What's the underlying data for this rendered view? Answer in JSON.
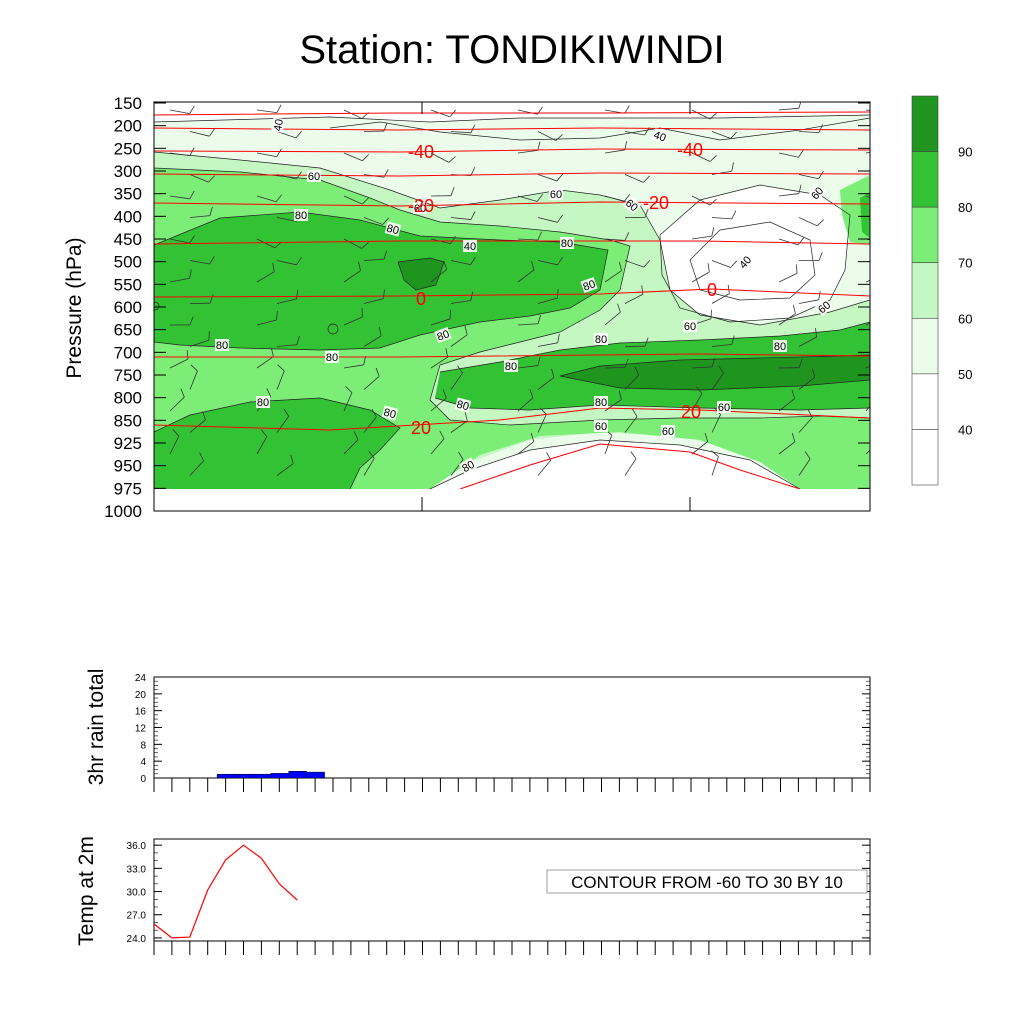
{
  "title": "Station: TONDIKIWINDI",
  "colors": {
    "fill_levels": [
      "#ffffff",
      "#ecfceb",
      "#c5f7c2",
      "#7cee77",
      "#33c233",
      "#1f951f"
    ],
    "contour_line": "#111111",
    "temperature_line": "#ff0000",
    "rain_bar": "#0000ff"
  },
  "chart_data": [
    {
      "id": "cross_section",
      "type": "heatmap",
      "description_kind": "filled contours of relative humidity with temperature contours and wind barbs",
      "ylabel": "Pressure (hPa)",
      "y_ticks": [
        150,
        200,
        250,
        300,
        350,
        400,
        450,
        500,
        550,
        600,
        650,
        700,
        750,
        800,
        850,
        925,
        950,
        975,
        1000
      ],
      "y_axis_reversed": true,
      "x_tick_count": 3,
      "colorbar": {
        "labels": [
          "40",
          "50",
          "60",
          "70",
          "80",
          "90"
        ],
        "levels": [
          40,
          50,
          60,
          70,
          80,
          90
        ]
      },
      "humidity_contour_labels": [
        "40",
        "40",
        "40",
        "60",
        "60",
        "60",
        "60",
        "60",
        "60",
        "60",
        "60",
        "80",
        "80",
        "80",
        "80",
        "80",
        "80",
        "80",
        "80",
        "80",
        "80",
        "80",
        "80",
        "80",
        "80",
        "80",
        "60",
        "60",
        "40"
      ],
      "temperature_contours": [
        {
          "level": -40,
          "label": "-40"
        },
        {
          "level": -20,
          "label": "-20"
        },
        {
          "level": 0,
          "label": "0"
        },
        {
          "level": 20,
          "label": "20"
        }
      ],
      "temperature_label_texts": [
        "-40",
        "-40",
        "-20",
        "-20",
        "0",
        "0",
        "20",
        "20"
      ],
      "info_box": "CONTOUR FROM -60 TO 30 BY 10"
    },
    {
      "id": "rain",
      "type": "bar",
      "ylabel": "3hr rain total",
      "y_ticks": [
        "0",
        "4",
        "8",
        "12",
        "16",
        "20",
        "24"
      ],
      "ylim": [
        0,
        24
      ],
      "values": [
        0,
        0,
        0,
        0,
        0.9,
        0.9,
        0.9,
        1.1,
        1.6,
        1.4
      ],
      "x_tick_count": 41
    },
    {
      "id": "temp2m",
      "type": "line",
      "ylabel": "Temp at 2m",
      "y_ticks": [
        "24.0",
        "27.0",
        "30.0",
        "33.0",
        "36.0"
      ],
      "ylim": [
        23.6,
        36.8
      ],
      "values": [
        25.8,
        24.0,
        24.1,
        30.2,
        34.1,
        36.0,
        34.3,
        31.0,
        28.9
      ],
      "x_tick_count": 41,
      "info_box": "CONTOUR FROM -60 TO 30 BY 10"
    }
  ]
}
